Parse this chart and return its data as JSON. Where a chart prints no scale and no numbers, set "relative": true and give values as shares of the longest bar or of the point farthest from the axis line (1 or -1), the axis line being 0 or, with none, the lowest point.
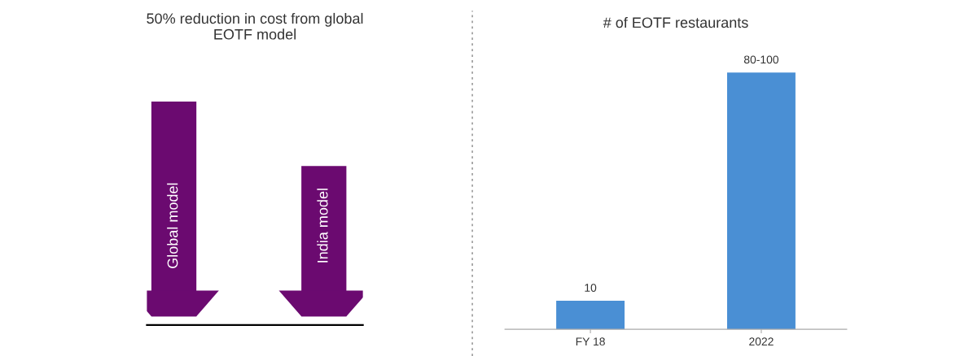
{
  "chart_data": [
    {
      "type": "bar",
      "title": "50% reduction in cost from global EOTF model",
      "categories": [
        "Global model",
        "India model"
      ],
      "values": [
        1,
        0.7
      ],
      "relative": true,
      "color": "#6b0a70"
    },
    {
      "type": "bar",
      "title": "# of EOTF restaurants",
      "categories": [
        "FY 18",
        "2022"
      ],
      "values": [
        10,
        90
      ],
      "value_labels": [
        "10",
        "80-100"
      ],
      "color": "#4a8fd4"
    }
  ]
}
